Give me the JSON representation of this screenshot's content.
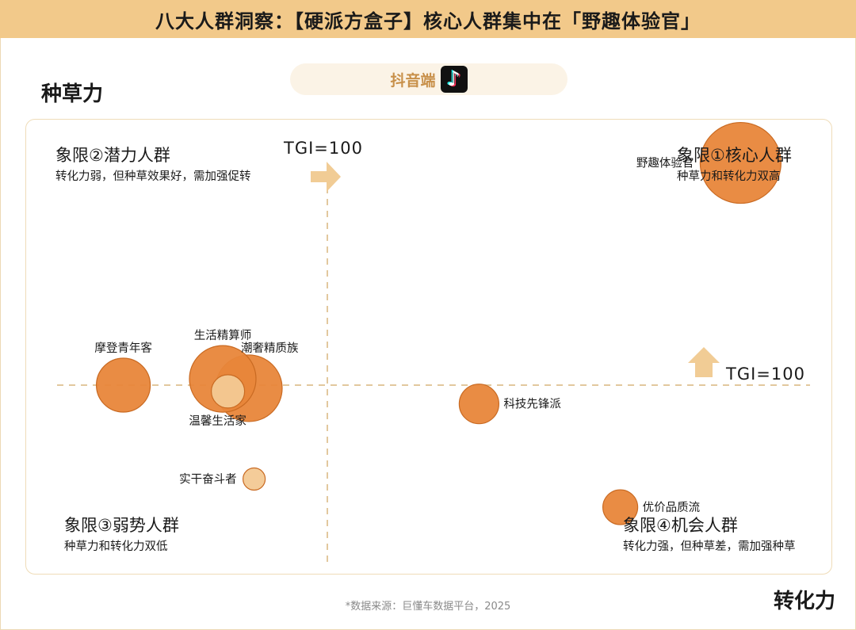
{
  "header": {
    "title": "八大人群洞察：【硬派方盒子】核心人群集中在「野趣体验官」"
  },
  "platform": {
    "label": "抖音端",
    "icon": "tiktok-icon"
  },
  "colors": {
    "header_bg": "#f2c98a",
    "bubble_main": "#e8863a",
    "bubble_light": "#f3c994",
    "dash": "#e2c89e",
    "arrow": "#f1cc95"
  },
  "quadrants": {
    "q1": {
      "title": "象限①核心人群",
      "desc": "种草力和转化力双高"
    },
    "q2": {
      "title": "象限②潜力人群",
      "desc": "转化力弱，但种草效果好，需加强促转"
    },
    "q3": {
      "title": "象限③弱势人群",
      "desc": "种草力和转化力双低"
    },
    "q4": {
      "title": "象限④机会人群",
      "desc": "转化力强，但种草差，需加强种草"
    }
  },
  "chart_data": {
    "type": "scatter",
    "xlabel": "转化力",
    "ylabel": "种草力",
    "reference_lines": {
      "x_label": "TGI=100",
      "y_label": "TGI=100"
    },
    "points": [
      {
        "name": "野趣体验官",
        "x": 1.79,
        "y": 1.71,
        "size": 51,
        "tone": "main",
        "label_side": "left"
      },
      {
        "name": "摩登青年客",
        "x": 0.61,
        "y": 1.0,
        "size": 34,
        "tone": "main",
        "label_side": "top"
      },
      {
        "name": "潮奢精质族",
        "x": 0.85,
        "y": 0.99,
        "size": 42,
        "tone": "main",
        "label_side": "topright"
      },
      {
        "name": "生活精算师",
        "x": 0.8,
        "y": 1.02,
        "size": 42,
        "tone": "main",
        "label_side": "top"
      },
      {
        "name": "温馨生活家",
        "x": 0.81,
        "y": 0.98,
        "size": 21,
        "tone": "light",
        "label_side": "bottom"
      },
      {
        "name": "实干奋斗者",
        "x": 0.86,
        "y": 0.7,
        "size": 14,
        "tone": "light",
        "label_side": "left"
      },
      {
        "name": "科技先锋派",
        "x": 1.29,
        "y": 0.94,
        "size": 25,
        "tone": "main",
        "label_side": "right"
      },
      {
        "name": "优价品质流",
        "x": 1.56,
        "y": 0.61,
        "size": 22,
        "tone": "main",
        "label_side": "right"
      }
    ]
  },
  "source": "*数据来源：巨懂车数据平台，2025"
}
